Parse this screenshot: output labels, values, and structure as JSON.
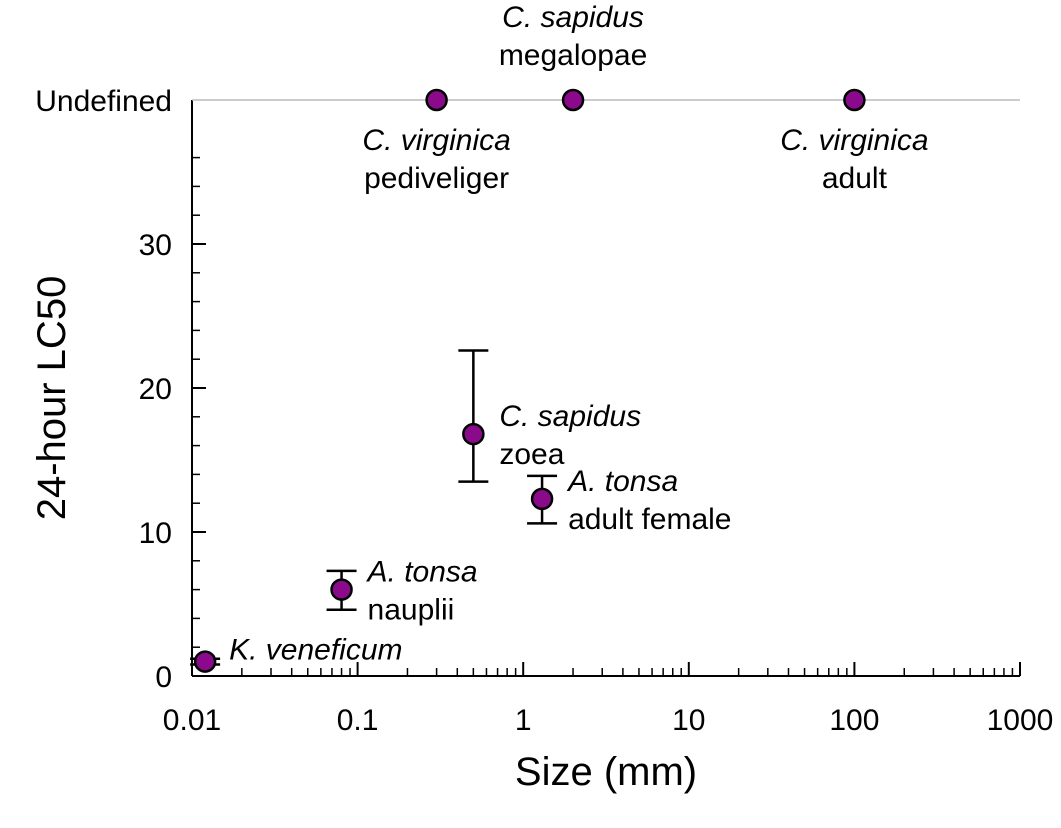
{
  "chart_data": {
    "type": "scatter",
    "title": "",
    "xlabel": "Size (mm)",
    "ylabel": "24-hour LC50",
    "xscale": "log",
    "xlim": [
      0.01,
      1000
    ],
    "ylim": [
      0,
      40
    ],
    "grid": false,
    "x_ticks": [
      {
        "value": 0.01,
        "label": "0.01"
      },
      {
        "value": 0.1,
        "label": "0.1"
      },
      {
        "value": 1,
        "label": "1"
      },
      {
        "value": 10,
        "label": "10"
      },
      {
        "value": 100,
        "label": "100"
      },
      {
        "value": 1000,
        "label": "1000"
      }
    ],
    "y_ticks": [
      {
        "value": 0,
        "label": "0"
      },
      {
        "value": 10,
        "label": "10"
      },
      {
        "value": 20,
        "label": "20"
      },
      {
        "value": 30,
        "label": "30"
      }
    ],
    "undefined_level": {
      "label": "Undefined",
      "value": 40
    },
    "marker_color": "#8B0A8B",
    "points": [
      {
        "species": "K. veneficum",
        "stage": "",
        "x": 0.012,
        "y": 1.0,
        "err_low": 0.8,
        "err_high": 1.2,
        "label_side": "right"
      },
      {
        "species": "A. tonsa",
        "stage": "nauplii",
        "x": 0.08,
        "y": 6.0,
        "err_low": 4.6,
        "err_high": 7.3,
        "label_side": "right"
      },
      {
        "species": "C. sapidus",
        "stage": "zoea",
        "x": 0.5,
        "y": 16.8,
        "err_low": 13.5,
        "err_high": 22.6,
        "label_side": "right"
      },
      {
        "species": "A. tonsa",
        "stage": "adult female",
        "x": 1.3,
        "y": 12.3,
        "err_low": 10.6,
        "err_high": 13.9,
        "label_side": "right"
      },
      {
        "species": "C. virginica",
        "stage": "pediveliger",
        "x": 0.3,
        "y": 40,
        "undefined": true,
        "label_side": "below"
      },
      {
        "species": "C. sapidus",
        "stage": "megalopae",
        "x": 2.0,
        "y": 40,
        "undefined": true,
        "label_side": "above"
      },
      {
        "species": "C. virginica",
        "stage": "adult",
        "x": 100,
        "y": 40,
        "undefined": true,
        "label_side": "below"
      }
    ]
  }
}
